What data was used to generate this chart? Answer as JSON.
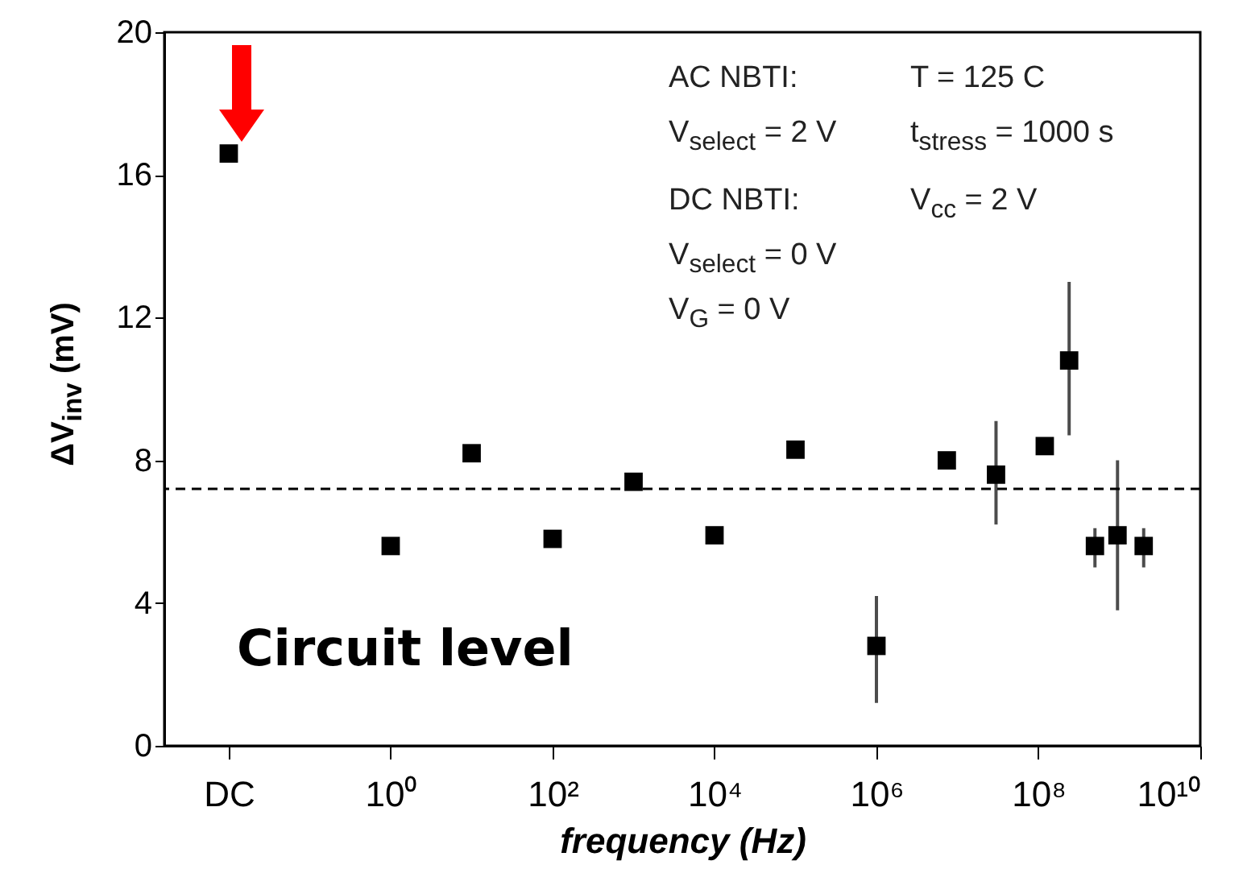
{
  "chart_data": {
    "type": "scatter",
    "xlabel": "frequency (Hz)",
    "ylabel": "ΔV$_{inv}$ (mV)",
    "log": "x",
    "marker": "square",
    "grid": false,
    "xlim": [
      0.0016,
      10000000000
    ],
    "ylim": [
      0,
      20
    ],
    "xticks": [
      {
        "value": 0.01,
        "label": "DC"
      },
      {
        "value": 1,
        "label": "10⁰"
      },
      {
        "value": 100,
        "label": "10²"
      },
      {
        "value": 10000,
        "label": "10⁴"
      },
      {
        "value": 1000000,
        "label": "10⁶"
      },
      {
        "value": 100000000,
        "label": "10⁸"
      },
      {
        "value": 10000000000,
        "label": "10¹⁰"
      }
    ],
    "yticks": [
      0,
      4,
      8,
      12,
      16,
      20
    ],
    "series": [
      {
        "color": "#000000",
        "x": [
          0.01,
          1,
          10,
          100,
          1000,
          10000,
          100000,
          7400000,
          30000000,
          120000000,
          240000000,
          500000000,
          950000000,
          2000000000
        ],
        "values": [
          16.6,
          5.6,
          8.2,
          5.8,
          7.4,
          5.9,
          8.3,
          8.0,
          7.6,
          8.4,
          10.8,
          5.6,
          5.9,
          5.6
        ],
        "errors": [
          null,
          null,
          null,
          null,
          null,
          null,
          null,
          null,
          [
            6.2,
            9.1
          ],
          null,
          [
            8.7,
            13.0
          ],
          [
            5.0,
            6.1
          ],
          [
            3.8,
            8.0
          ],
          [
            5.0,
            6.1
          ]
        ]
      },
      {
        "color": "#000000",
        "x": [
          1000000
        ],
        "values": [
          2.8
        ],
        "errors": [
          [
            1.2,
            4.2
          ]
        ]
      }
    ],
    "ref_lines": [
      {
        "axis": "y",
        "value": 7.2,
        "line_style": "dashed",
        "color": "#000000"
      }
    ],
    "annotations": [
      "AC NBTI:",
      "V$_{select}$ = 2 V",
      "DC NBTI:",
      "V$_{select}$ = 0 V",
      "V$_{G}$ = 0 V",
      "T = 125 C",
      "t$_{stress}$ = 1000 s",
      "V$_{cc}$ = 2 V",
      "Circuit level"
    ]
  }
}
